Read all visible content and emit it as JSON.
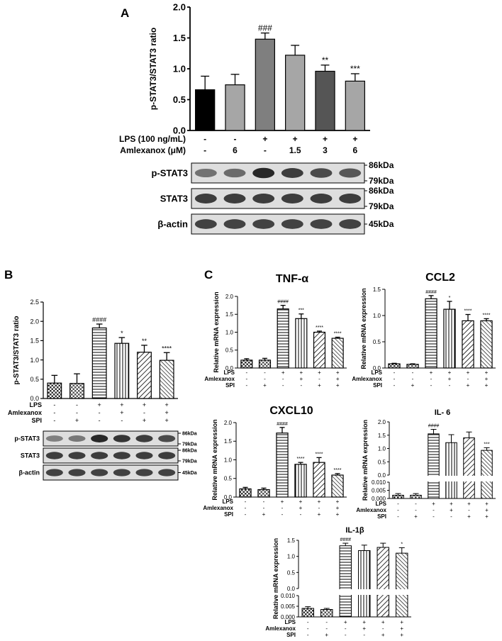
{
  "figure": {
    "panels": [
      {
        "letter": "A"
      },
      {
        "letter": "B"
      },
      {
        "letter": "C"
      }
    ]
  },
  "colors": {
    "black": "#000000",
    "dark_gray": "#555555",
    "mid_gray": "#7f7f7f",
    "light_gray": "#a6a6a6",
    "blot_bg": "#dedede",
    "band": "#2a2a2a"
  },
  "chart_data": [
    {
      "id": "A",
      "type": "bar",
      "ylabel": "p-STAT3/STAT3 ratio",
      "ylim": [
        0,
        2.0
      ],
      "yticks": [
        "0.0",
        "0.5",
        "1.0",
        "1.5",
        "2.0"
      ],
      "categories": [
        "1",
        "2",
        "3",
        "4",
        "5",
        "6"
      ],
      "values": [
        0.66,
        0.74,
        1.48,
        1.22,
        0.96,
        0.8
      ],
      "errors": [
        0.22,
        0.17,
        0.1,
        0.16,
        0.1,
        0.12
      ],
      "annotations": [
        "",
        "",
        "###",
        "",
        "**",
        "***"
      ],
      "bar_colors": [
        "#000000",
        "#a6a6a6",
        "#7f7f7f",
        "#a6a6a6",
        "#555555",
        "#a6a6a6"
      ],
      "treatments": [
        {
          "label": "LPS (100 ng/mL)",
          "marks": [
            "-",
            "-",
            "+",
            "+",
            "+",
            "+"
          ]
        },
        {
          "label": "Amlexanox (μM)",
          "marks": [
            "-",
            "6",
            "-",
            "1.5",
            "3",
            "6"
          ]
        }
      ],
      "blots": [
        {
          "label": "p-STAT3",
          "markers": [
            "86kDa",
            "79kDa"
          ],
          "intensity": [
            0.45,
            0.5,
            1.0,
            0.85,
            0.75,
            0.65
          ]
        },
        {
          "label": "STAT3",
          "markers": [
            "86kDa",
            "79kDa"
          ],
          "intensity": [
            0.85,
            0.85,
            0.85,
            0.85,
            0.85,
            0.85
          ]
        },
        {
          "label": "β-actin",
          "markers": [
            "45kDa"
          ],
          "intensity": [
            0.8,
            0.8,
            0.8,
            0.8,
            0.8,
            0.8
          ]
        }
      ]
    },
    {
      "id": "B",
      "type": "bar",
      "ylabel": "p-STAT3/STAT3 ratio",
      "ylim": [
        0,
        2.5
      ],
      "yticks": [
        "0.0",
        "0.5",
        "1.0",
        "1.5",
        "2.0",
        "2.5"
      ],
      "categories": [
        "1",
        "2",
        "3",
        "4",
        "5",
        "6"
      ],
      "values": [
        0.4,
        0.39,
        1.83,
        1.43,
        1.2,
        0.99
      ],
      "errors": [
        0.2,
        0.25,
        0.1,
        0.15,
        0.18,
        0.2
      ],
      "annotations": [
        "",
        "",
        "####",
        "*",
        "**",
        "****"
      ],
      "treatments": [
        {
          "label": "LPS",
          "marks": [
            "-",
            "-",
            "+",
            "+",
            "+",
            "+"
          ]
        },
        {
          "label": "Amlexanox",
          "marks": [
            "-",
            "-",
            "-",
            "+",
            "-",
            "+"
          ]
        },
        {
          "label": "SPI",
          "marks": [
            "-",
            "+",
            "-",
            "-",
            "+",
            "+"
          ]
        }
      ],
      "blots": [
        {
          "label": "p-STAT3",
          "markers": [
            "86kDa",
            "79kDa"
          ],
          "intensity": [
            0.35,
            0.4,
            1.0,
            0.9,
            0.85,
            0.75
          ]
        },
        {
          "label": "STAT3",
          "markers": [
            "86kDa",
            "79kDa"
          ],
          "intensity": [
            0.85,
            0.85,
            0.85,
            0.85,
            0.85,
            0.85
          ]
        },
        {
          "label": "β-actin",
          "markers": [
            "45kDa"
          ],
          "intensity": [
            0.8,
            0.8,
            0.8,
            0.8,
            0.8,
            0.8
          ]
        }
      ]
    },
    {
      "id": "C1",
      "type": "bar",
      "title": "TNF-α",
      "ylabel": "Relative mRNA expression",
      "ylim": [
        0,
        2.0
      ],
      "yticks": [
        "0.0",
        "0.5",
        "1.0",
        "1.5",
        "2.0"
      ],
      "values": [
        0.22,
        0.22,
        1.65,
        1.38,
        1.0,
        0.83
      ],
      "errors": [
        0.04,
        0.05,
        0.1,
        0.13,
        0.03,
        0.03
      ],
      "annotations": [
        "",
        "",
        "####",
        "***",
        "****",
        "****"
      ],
      "treatments": [
        {
          "label": "LPS",
          "marks": [
            "-",
            "-",
            "+",
            "+",
            "+",
            "+"
          ]
        },
        {
          "label": "Amlexanox",
          "marks": [
            "-",
            "-",
            "-",
            "+",
            "-",
            "+"
          ]
        },
        {
          "label": "SPI",
          "marks": [
            "-",
            "+",
            "-",
            "-",
            "+",
            "+"
          ]
        }
      ]
    },
    {
      "id": "C2",
      "type": "bar",
      "title": "CCL2",
      "ylabel": "Relative mRNA expression",
      "ylim": [
        0,
        1.5
      ],
      "yticks": [
        "0.0",
        "0.5",
        "1.0",
        "1.5"
      ],
      "values": [
        0.08,
        0.07,
        1.32,
        1.12,
        0.9,
        0.9
      ],
      "errors": [
        0.01,
        0.01,
        0.06,
        0.15,
        0.12,
        0.04
      ],
      "annotations": [
        "",
        "",
        "####",
        "*",
        "****",
        "****"
      ],
      "treatments": [
        {
          "label": "LPS",
          "marks": [
            "-",
            "-",
            "+",
            "+",
            "+",
            "+"
          ]
        },
        {
          "label": "Amlexanox",
          "marks": [
            "-",
            "-",
            "-",
            "+",
            "-",
            "+"
          ]
        },
        {
          "label": "SPI",
          "marks": [
            "-",
            "+",
            "-",
            "-",
            "+",
            "+"
          ]
        }
      ]
    },
    {
      "id": "C3",
      "type": "bar",
      "title": "CXCL10",
      "ylabel": "Relative mRNA expression",
      "ylim": [
        0,
        2.0
      ],
      "yticks": [
        "0.0",
        "0.5",
        "1.0",
        "1.5",
        "2.0"
      ],
      "values": [
        0.22,
        0.2,
        1.72,
        0.88,
        0.93,
        0.59
      ],
      "errors": [
        0.04,
        0.04,
        0.15,
        0.05,
        0.13,
        0.04
      ],
      "annotations": [
        "",
        "",
        "####",
        "****",
        "****",
        "****"
      ],
      "treatments": [
        {
          "label": "LPS",
          "marks": [
            "-",
            "-",
            "+",
            "+",
            "+",
            "+"
          ]
        },
        {
          "label": "Amlexanox",
          "marks": [
            "-",
            "-",
            "-",
            "+",
            "-",
            "+"
          ]
        },
        {
          "label": "SPI",
          "marks": [
            "-",
            "+",
            "-",
            "-",
            "+",
            "+"
          ]
        }
      ]
    },
    {
      "id": "C4",
      "type": "bar",
      "title": "IL- 6",
      "ylabel": "Relative mRNA expression",
      "broken_axis": true,
      "yticks_lower": [
        "0.000",
        "0.005",
        "0.010"
      ],
      "yticks_upper": [
        "0.0",
        "0.5",
        "1.0",
        "1.5",
        "2.0"
      ],
      "values": [
        0.002,
        0.002,
        1.55,
        1.22,
        1.4,
        0.93
      ],
      "errors": [
        0.001,
        0.001,
        0.17,
        0.3,
        0.22,
        0.1
      ],
      "annotations": [
        "",
        "",
        "####",
        "",
        "",
        "***"
      ],
      "treatments": [
        {
          "label": "LPS",
          "marks": [
            "-",
            "-",
            "+",
            "+",
            "+",
            "+"
          ]
        },
        {
          "label": "Amlexanox",
          "marks": [
            "-",
            "-",
            "-",
            "+",
            "-",
            "+"
          ]
        },
        {
          "label": "SPI",
          "marks": [
            "-",
            "+",
            "-",
            "-",
            "+",
            "+"
          ]
        }
      ]
    },
    {
      "id": "C5",
      "type": "bar",
      "title": "IL-1β",
      "ylabel": "Relative mRNA expression",
      "broken_axis": true,
      "yticks_lower": [
        "0.000",
        "0.005",
        "0.010"
      ],
      "yticks_upper": [
        "0.0",
        "0.5",
        "1.0",
        "1.5"
      ],
      "values": [
        0.004,
        0.0035,
        1.33,
        1.18,
        1.28,
        1.1
      ],
      "errors": [
        0.0008,
        0.0005,
        0.08,
        0.17,
        0.13,
        0.17
      ],
      "annotations": [
        "",
        "",
        "####",
        "",
        "",
        "*"
      ],
      "treatments": [
        {
          "label": "LPS",
          "marks": [
            "-",
            "-",
            "+",
            "+",
            "+",
            "+"
          ]
        },
        {
          "label": "Amlexanox",
          "marks": [
            "-",
            "-",
            "-",
            "+",
            "-",
            "+"
          ]
        },
        {
          "label": "SPI",
          "marks": [
            "-",
            "+",
            "-",
            "-",
            "+",
            "+"
          ]
        }
      ]
    }
  ]
}
